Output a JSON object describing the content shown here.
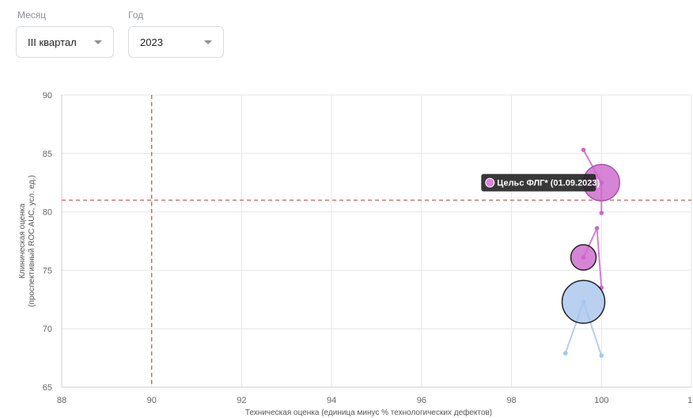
{
  "filters": {
    "month_label": "Месяц",
    "month_value": "III квартал",
    "year_label": "Год",
    "year_value": "2023"
  },
  "chart_data": {
    "type": "scatter",
    "title": "",
    "xlabel": "Техническая оценка (единица минус % технологических дефектов)",
    "ylabel_line1": "Клиническая оценка",
    "ylabel_line2": "(проспективный ROC AUC, усл. ед.)",
    "xlim": [
      88,
      102
    ],
    "ylim": [
      65,
      90
    ],
    "x_ticks": [
      "88",
      "90",
      "92",
      "94",
      "96",
      "98",
      "100",
      "1"
    ],
    "y_ticks": [
      "65",
      "70",
      "75",
      "80",
      "85",
      "90"
    ],
    "threshold_x": 90,
    "threshold_y": 81,
    "tooltip": "Цельс ФЛГ* (01.09.2023)",
    "series": [
      {
        "color": "#cc66cc",
        "trail": [
          [
            99.6,
            85.3
          ],
          [
            100.0,
            82.5
          ],
          [
            100.0,
            79.9
          ]
        ],
        "bubble": {
          "x": 100.0,
          "y": 82.5,
          "r": 23
        },
        "outline": "#aa55aa"
      },
      {
        "color": "#cc66cc",
        "trail": [
          [
            99.6,
            76.1
          ],
          [
            99.9,
            78.6
          ],
          [
            100.0,
            73.5
          ]
        ],
        "bubble": {
          "x": 99.6,
          "y": 76.1,
          "r": 16
        },
        "outline": "#222222"
      },
      {
        "color": "#a8c4ee",
        "trail": [
          [
            99.2,
            67.9
          ],
          [
            99.6,
            72.3
          ],
          [
            100.0,
            67.7
          ]
        ],
        "bubble": {
          "x": 99.6,
          "y": 72.3,
          "r": 27
        },
        "outline": "#222222"
      }
    ]
  }
}
